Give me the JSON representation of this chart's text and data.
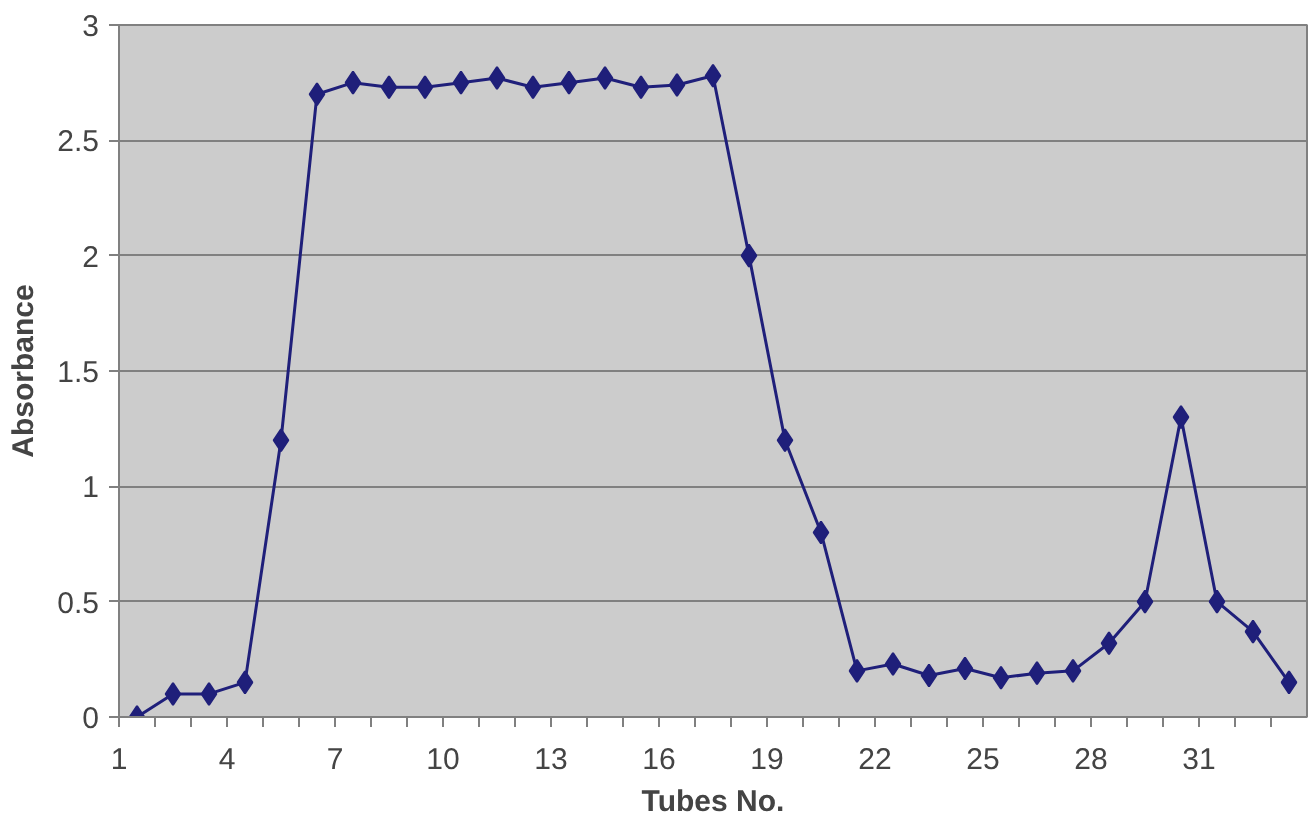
{
  "chart_data": {
    "type": "line",
    "xlabel": "Tubes No.",
    "ylabel": "Absorbance",
    "x": [
      1,
      2,
      3,
      4,
      5,
      6,
      7,
      8,
      9,
      10,
      11,
      12,
      13,
      14,
      15,
      16,
      17,
      18,
      19,
      20,
      21,
      22,
      23,
      24,
      25,
      26,
      27,
      28,
      29,
      30,
      31,
      32,
      33
    ],
    "series": [
      {
        "color": "#1f1f7a",
        "values": [
          0,
          0.1,
          0.1,
          0.15,
          1.2,
          2.7,
          2.75,
          2.73,
          2.73,
          2.75,
          2.77,
          2.73,
          2.75,
          2.77,
          2.73,
          2.74,
          2.78,
          2.0,
          1.2,
          0.8,
          0.2,
          0.23,
          0.18,
          0.21,
          0.17,
          0.19,
          0.2,
          0.32,
          0.5,
          1.3,
          0.5,
          0.37,
          0.15
        ]
      }
    ],
    "xlim": [
      0.5,
      33.5
    ],
    "xticks": [
      {
        "value": 0.5,
        "label": "1"
      },
      {
        "value": 1.5,
        "label": null
      },
      {
        "value": 2.5,
        "label": null
      },
      {
        "value": 3.5,
        "label": "4"
      },
      {
        "value": 4.5,
        "label": null
      },
      {
        "value": 5.5,
        "label": null
      },
      {
        "value": 6.5,
        "label": "7"
      },
      {
        "value": 7.5,
        "label": null
      },
      {
        "value": 8.5,
        "label": null
      },
      {
        "value": 9.5,
        "label": "10"
      },
      {
        "value": 10.5,
        "label": null
      },
      {
        "value": 11.5,
        "label": null
      },
      {
        "value": 12.5,
        "label": "13"
      },
      {
        "value": 13.5,
        "label": null
      },
      {
        "value": 14.5,
        "label": null
      },
      {
        "value": 15.5,
        "label": "16"
      },
      {
        "value": 16.5,
        "label": null
      },
      {
        "value": 17.5,
        "label": null
      },
      {
        "value": 18.5,
        "label": "19"
      },
      {
        "value": 19.5,
        "label": null
      },
      {
        "value": 20.5,
        "label": null
      },
      {
        "value": 21.5,
        "label": "22"
      },
      {
        "value": 22.5,
        "label": null
      },
      {
        "value": 23.5,
        "label": null
      },
      {
        "value": 24.5,
        "label": "25"
      },
      {
        "value": 25.5,
        "label": null
      },
      {
        "value": 26.5,
        "label": null
      },
      {
        "value": 27.5,
        "label": "28"
      },
      {
        "value": 28.5,
        "label": null
      },
      {
        "value": 29.5,
        "label": null
      },
      {
        "value": 30.5,
        "label": "31"
      },
      {
        "value": 31.5,
        "label": null
      },
      {
        "value": 32.5,
        "label": null
      }
    ],
    "ylim": [
      0,
      3
    ],
    "yticks": [
      0,
      0.5,
      1,
      1.5,
      2,
      2.5,
      3
    ],
    "grid": "y",
    "marker": "diamond",
    "line_style": "solid"
  }
}
